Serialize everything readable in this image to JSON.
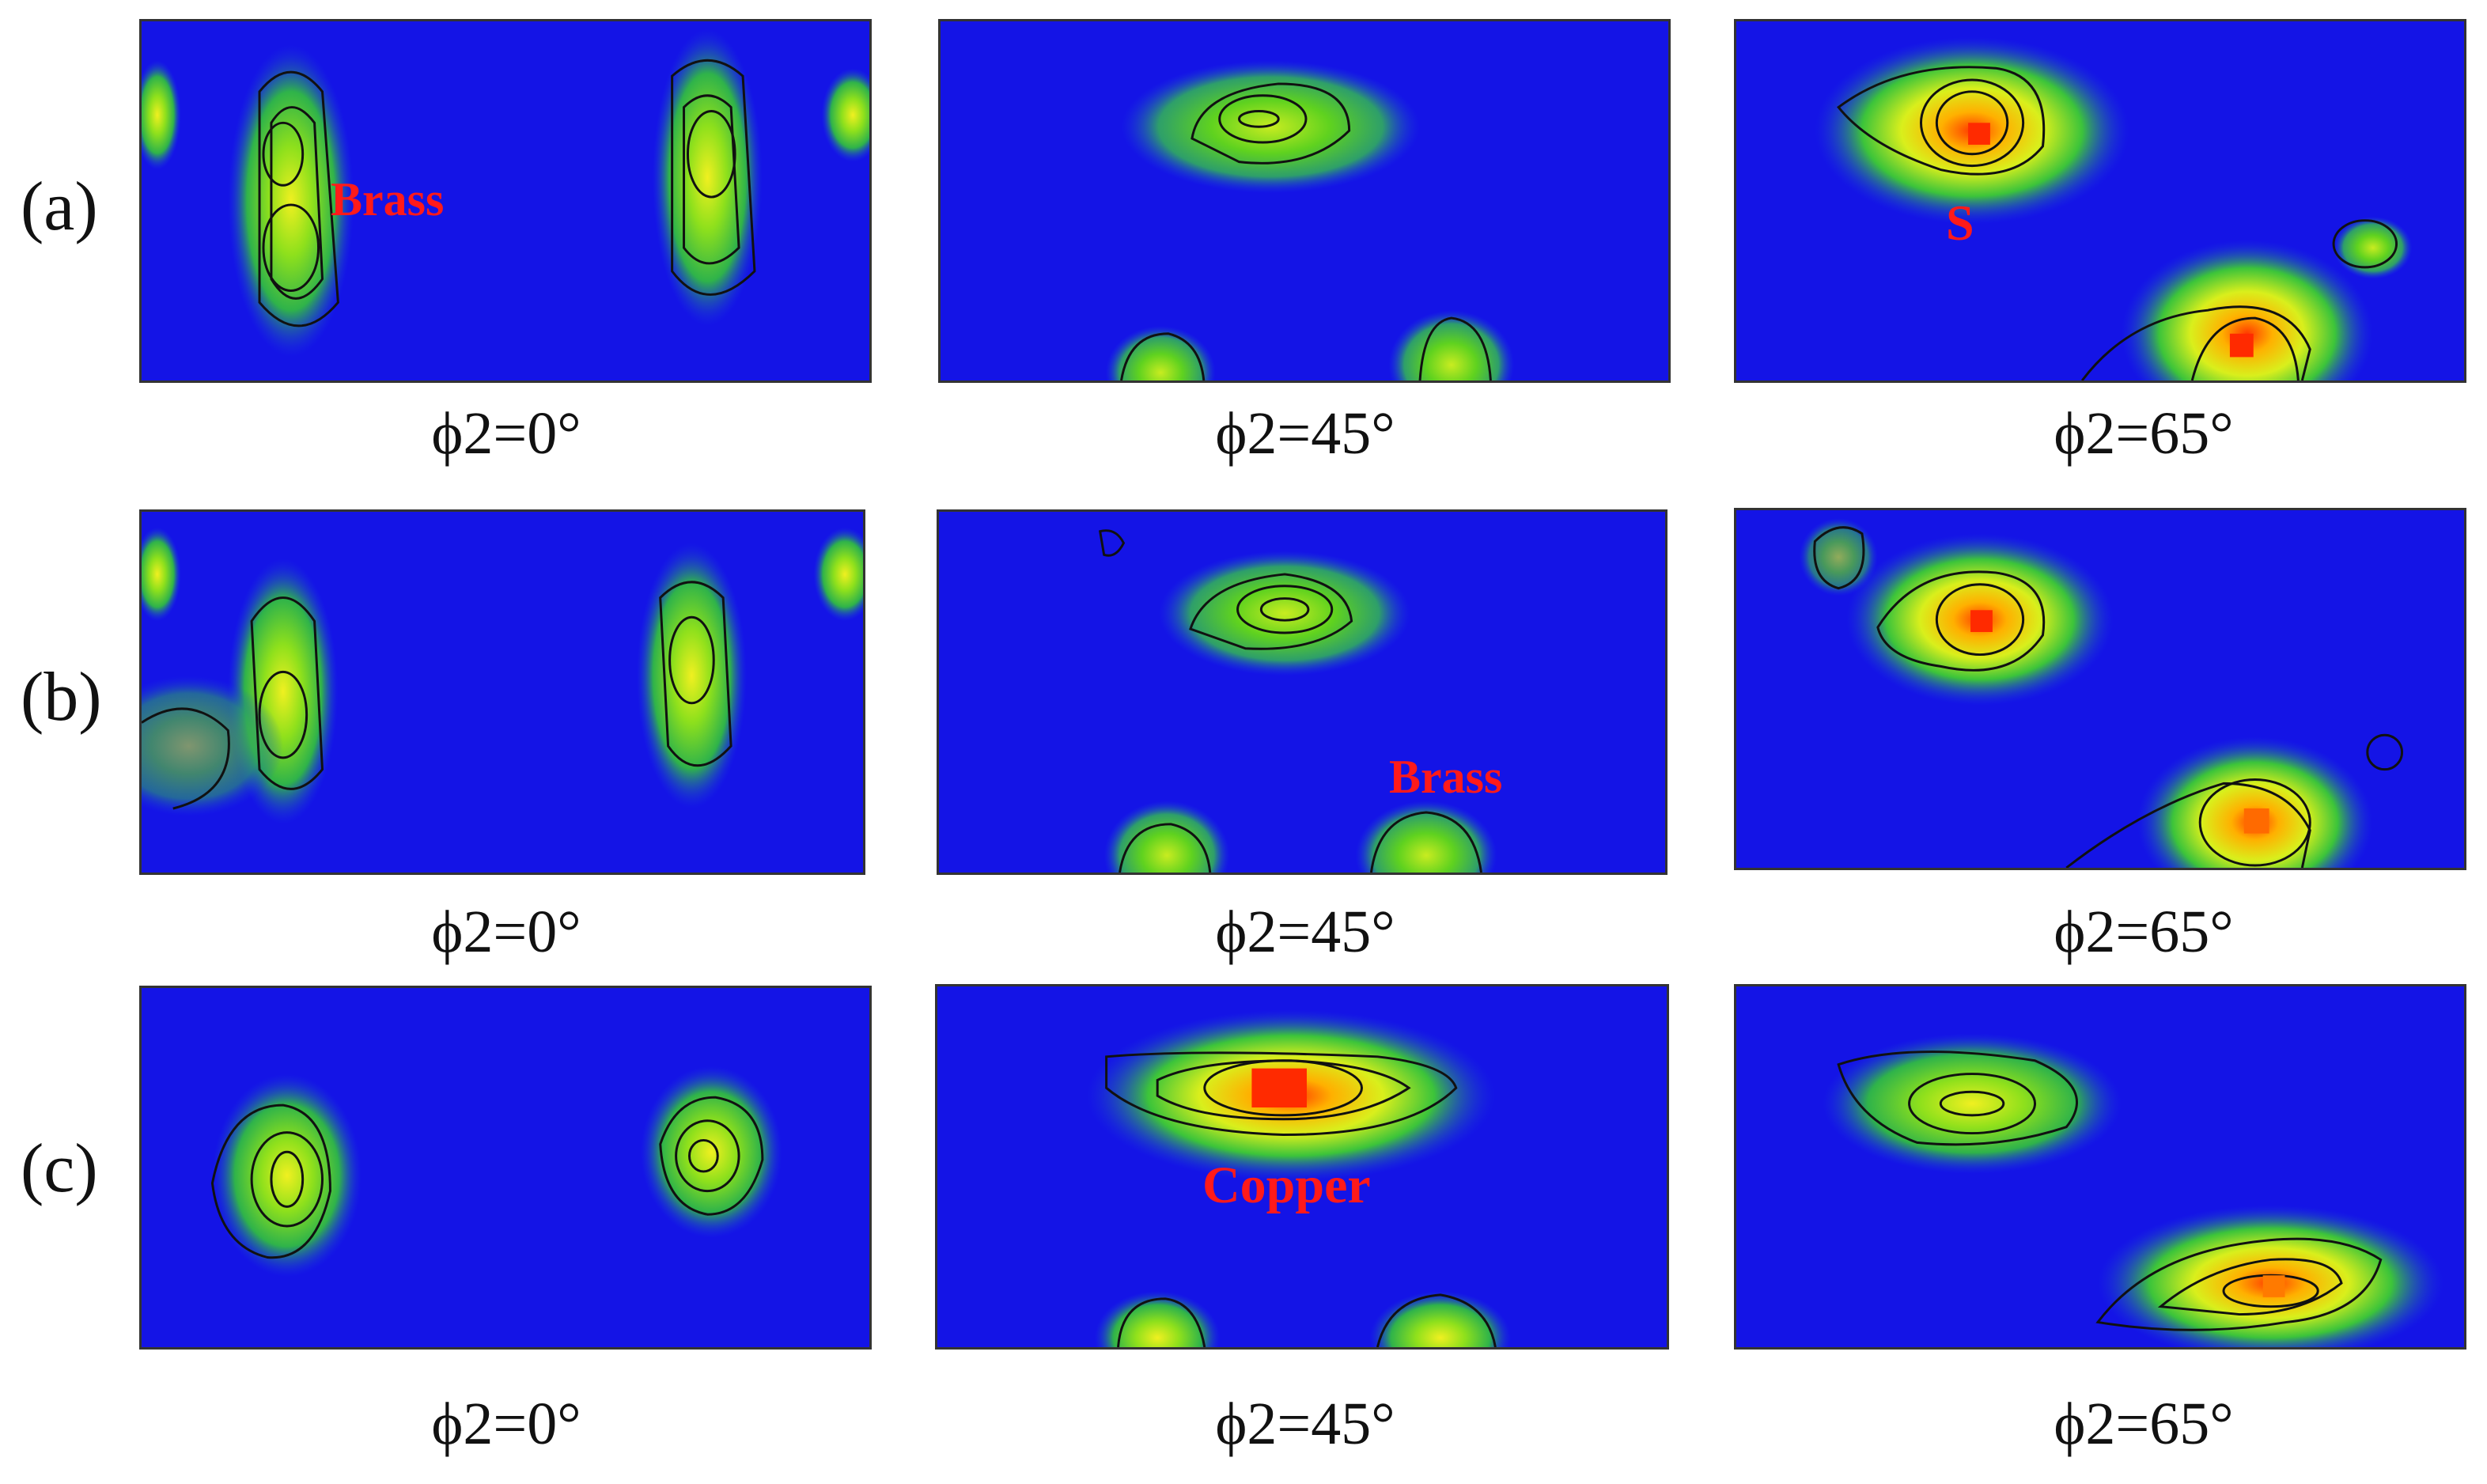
{
  "rows": [
    {
      "label": "(a)",
      "panels": [
        {
          "caption": "ϕ2=0°",
          "annotation": "Brass"
        },
        {
          "caption": "ϕ2=45°",
          "annotation": ""
        },
        {
          "caption": "ϕ2=65°",
          "annotation": "S"
        }
      ]
    },
    {
      "label": "(b)",
      "panels": [
        {
          "caption": "ϕ2=0°",
          "annotation": ""
        },
        {
          "caption": "ϕ2=45°",
          "annotation": "Brass"
        },
        {
          "caption": "ϕ2=65°",
          "annotation": ""
        }
      ]
    },
    {
      "label": "(c)",
      "panels": [
        {
          "caption": "ϕ2=0°",
          "annotation": ""
        },
        {
          "caption": "ϕ2=45°",
          "annotation": "Copper"
        },
        {
          "caption": "ϕ2=65°",
          "annotation": ""
        }
      ]
    }
  ],
  "colors": {
    "background": "#1414e6",
    "low": "#2a6ad6",
    "mid": "#1fa06a",
    "green": "#5fd21f",
    "yellow": "#e6f21a",
    "orange": "#ff9a00",
    "red": "#ff2a00",
    "contour": "#111111",
    "annotation": "#ff1a1a"
  }
}
